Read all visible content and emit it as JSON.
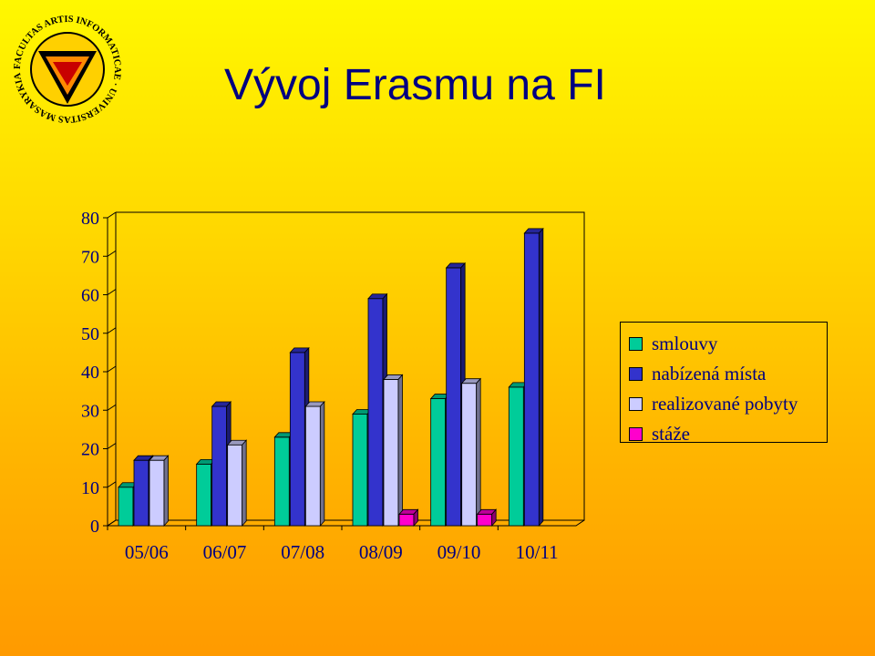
{
  "title": "Vývoj Erasmu na FI",
  "logo": {
    "icon": "faculty-seal-icon",
    "text": "FACULTAS ARTIS INFORMATICAE · UNIVERSITAS MASARYKIANA ·"
  },
  "colors": {
    "smlouvy": "#00cc99",
    "nabizena_mista": "#3333cc",
    "realizovane_pobyty": "#ccccff",
    "staze": "#ff00cc",
    "text": "#000080"
  },
  "chart_data": {
    "type": "bar",
    "categories": [
      "05/06",
      "06/07",
      "07/08",
      "08/09",
      "09/10",
      "10/11"
    ],
    "series": [
      {
        "name": "smlouvy",
        "values": [
          10,
          16,
          23,
          29,
          33,
          36
        ]
      },
      {
        "name": "nabízená místa",
        "values": [
          17,
          31,
          45,
          59,
          67,
          76
        ]
      },
      {
        "name": "realizované pobyty",
        "values": [
          17,
          21,
          31,
          38,
          37,
          0
        ]
      },
      {
        "name": "stáže",
        "values": [
          0,
          0,
          0,
          3,
          3,
          0
        ]
      }
    ],
    "yticks": [
      "0",
      "10",
      "20",
      "30",
      "40",
      "50",
      "60",
      "70",
      "80"
    ],
    "ylim": [
      0,
      80
    ],
    "grid": false,
    "legend_position": "right",
    "three_d": true
  }
}
